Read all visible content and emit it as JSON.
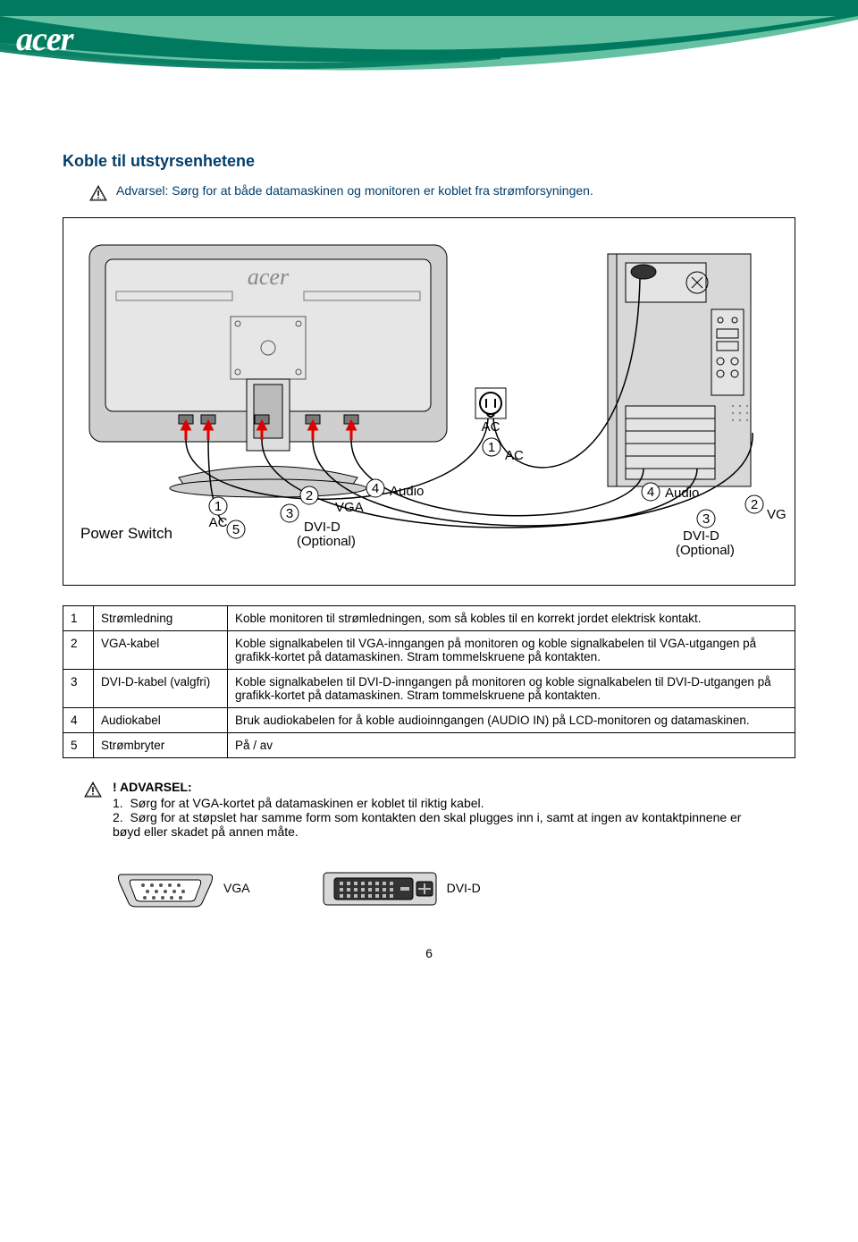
{
  "colors": {
    "brand_dark": "#007a5e",
    "brand_light": "#66c1a3",
    "heading": "#003e6c",
    "text": "#000000",
    "page_bg": "#ffffff",
    "diagram_grey": "#cfcfcf",
    "diagram_border": "#000000"
  },
  "logo_text": "acer",
  "section_title": "Koble til utstyrsenhetene",
  "top_warning": "Advarsel: Sørg for at både datamaskinen og monitoren er koblet fra strømforsyningen.",
  "diagram": {
    "labels": {
      "power_switch": "Power Switch",
      "ac": "AC",
      "vga": "VGA",
      "dvi": "DVI-D",
      "optional": "(Optional)",
      "audio": "Audio"
    },
    "callouts": [
      "1",
      "2",
      "3",
      "4",
      "5"
    ],
    "monitor_logo": "acer"
  },
  "table": {
    "rows": [
      {
        "n": "1",
        "name": "Strømledning",
        "desc": "Koble monitoren til strømledningen, som så kobles til en korrekt jordet elektrisk kontakt."
      },
      {
        "n": "2",
        "name": "VGA-kabel",
        "desc": "Koble signalkabelen til VGA-inngangen på monitoren og koble signalkabelen til VGA-utgangen på grafikk-kortet på datamaskinen. Stram tommelskruene på kontakten."
      },
      {
        "n": "3",
        "name": "DVI-D-kabel (valgfri)",
        "desc": "Koble signalkabelen til DVI-D-inngangen på monitoren og koble signalkabelen til DVI-D-utgangen på grafikk-kortet på datamaskinen. Stram tommelskruene på kontakten."
      },
      {
        "n": "4",
        "name": "Audiokabel",
        "desc": "Bruk audiokabelen for å koble audioinngangen (AUDIO IN) på LCD-monitoren og datamaskinen."
      },
      {
        "n": "5",
        "name": "Strømbryter",
        "desc": "På / av"
      }
    ]
  },
  "bottom_warning": {
    "heading": "! ADVARSEL:",
    "items": [
      "Sørg for at VGA-kortet på datamaskinen er koblet til riktig kabel.",
      "Sørg for at støpslet har samme form som kontakten den skal plugges inn i, samt at ingen av kontaktpinnene er bøyd eller skadet på annen måte."
    ]
  },
  "connectors": {
    "vga": "VGA",
    "dvi": "DVI-D"
  },
  "page_number": "6"
}
